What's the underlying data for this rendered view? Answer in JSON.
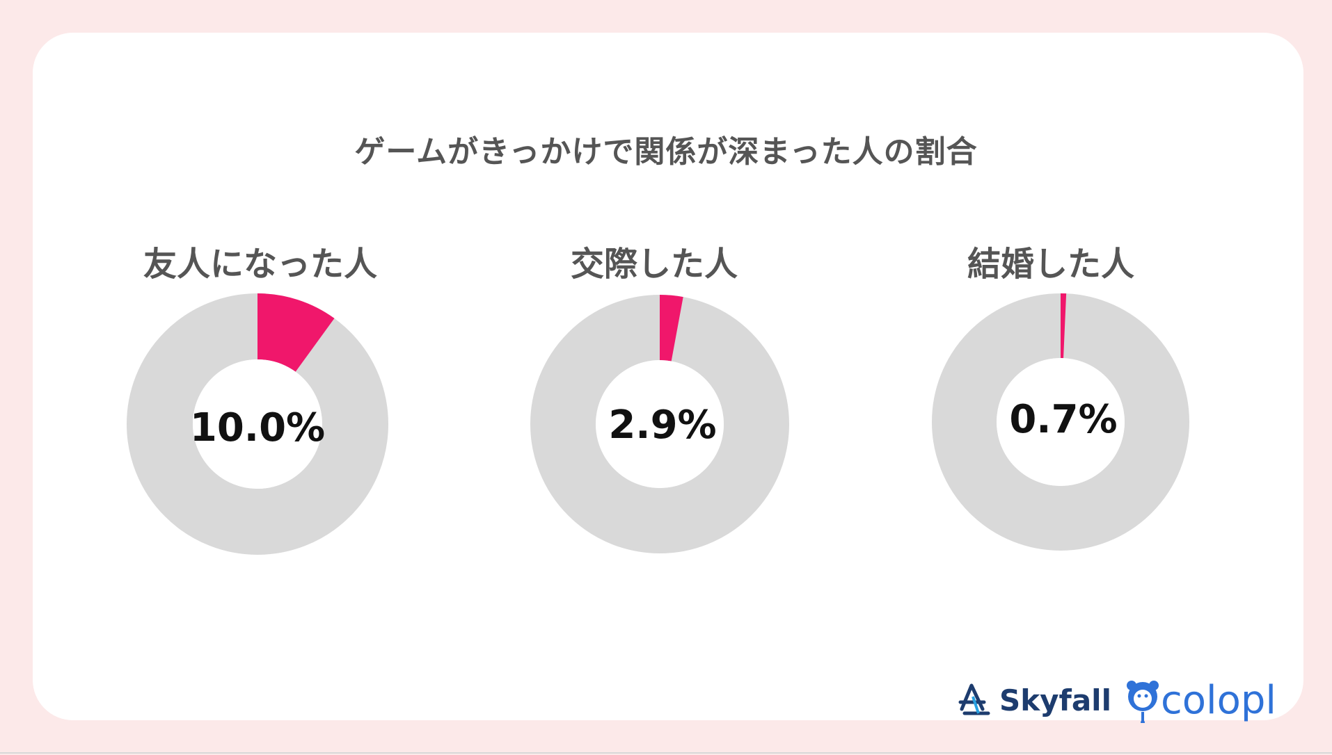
{
  "chart_data": {
    "type": "pie",
    "title": "ゲームがきっかけで関係が深まった人の割合",
    "charts": [
      {
        "label": "友人になった人",
        "value": 10.0,
        "value_label": "10.0%"
      },
      {
        "label": "交際した人",
        "value": 2.9,
        "value_label": "2.9%"
      },
      {
        "label": "結婚した人",
        "value": 0.7,
        "value_label": "0.7%"
      }
    ],
    "colors": {
      "highlight": "#f0176b",
      "rest": "#d9d9d9",
      "text": "#555555",
      "value_text": "#111111"
    }
  },
  "logos": {
    "skyfall": {
      "text": "Skyfall",
      "icon": "skyfall-logo-icon"
    },
    "colopl": {
      "text": "colopl",
      "icon": "colopl-bear-icon"
    }
  }
}
